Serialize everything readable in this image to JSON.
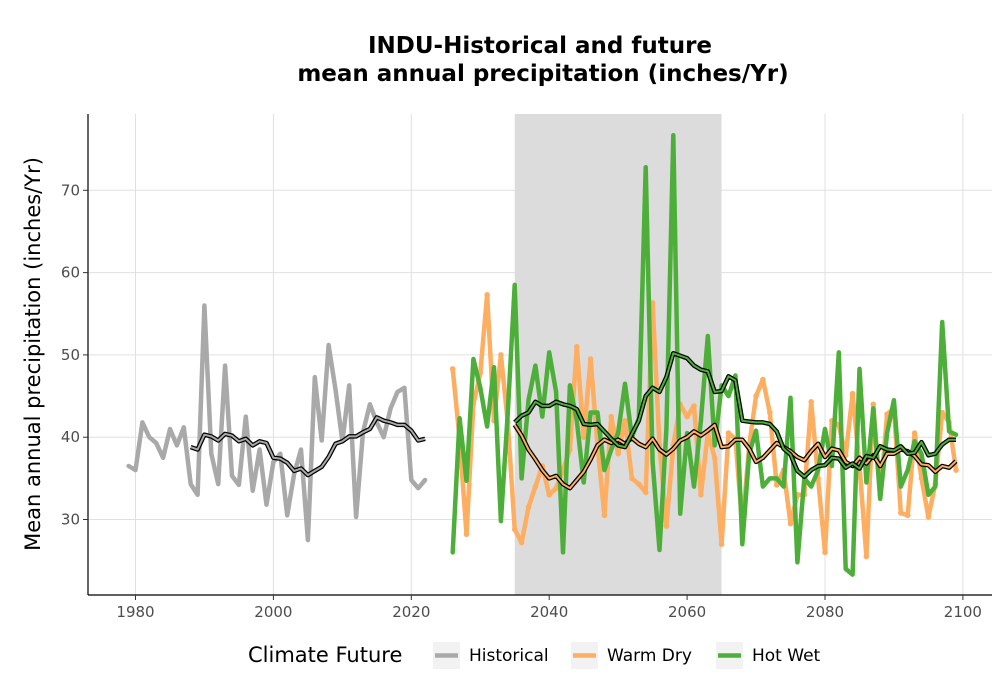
{
  "chart_data": {
    "type": "line",
    "title_line1": "INDU-Historical and future",
    "title_line2": "mean annual precipitation (inches/Yr)",
    "xlabel": "",
    "ylabel": "Mean annual precipitation (inches/Yr)",
    "xlim": [
      1973,
      2105
    ],
    "ylim": [
      21,
      80
    ],
    "x_ticks": [
      1980,
      2000,
      2020,
      2040,
      2060,
      2080,
      2100
    ],
    "y_ticks": [
      30,
      40,
      50,
      60,
      70
    ],
    "grid": true,
    "shaded_period": [
      2035,
      2065
    ],
    "shade_color": "#dcdcdc",
    "legend": {
      "title": "Climate Future",
      "position": "bottom",
      "entries": [
        {
          "label": "Historical",
          "color": "#a9a9a9"
        },
        {
          "label": "Warm Dry",
          "color": "#fdae61"
        },
        {
          "label": "Hot Wet",
          "color": "#4daf3a"
        }
      ]
    },
    "series": [
      {
        "name": "Historical",
        "color": "#a9a9a9",
        "x": [
          1979,
          1980,
          1981,
          1982,
          1983,
          1984,
          1985,
          1986,
          1987,
          1988,
          1989,
          1990,
          1991,
          1992,
          1993,
          1994,
          1995,
          1996,
          1997,
          1998,
          1999,
          2000,
          2001,
          2002,
          2003,
          2004,
          2005,
          2006,
          2007,
          2008,
          2009,
          2010,
          2011,
          2012,
          2013,
          2014,
          2015,
          2016,
          2017,
          2018,
          2019,
          2020,
          2021,
          2022
        ],
        "y": [
          36.5,
          36.0,
          41.8,
          40.0,
          39.3,
          37.5,
          41.0,
          39.0,
          41.2,
          34.3,
          33.0,
          56.0,
          38.0,
          34.3,
          48.7,
          35.3,
          34.2,
          42.5,
          33.5,
          38.5,
          31.8,
          37.0,
          38.0,
          30.5,
          35.5,
          38.5,
          27.5,
          47.3,
          39.6,
          51.2,
          45.8,
          39.5,
          46.3,
          30.3,
          40.6,
          44.0,
          41.8,
          40.0,
          43.5,
          45.5,
          46.0,
          34.8,
          33.8,
          34.8
        ]
      },
      {
        "name": "Warm Dry",
        "color": "#fdae61",
        "x": [
          2026,
          2027,
          2028,
          2029,
          2030,
          2031,
          2032,
          2033,
          2034,
          2035,
          2036,
          2037,
          2038,
          2039,
          2040,
          2041,
          2042,
          2043,
          2044,
          2045,
          2046,
          2047,
          2048,
          2049,
          2050,
          2051,
          2052,
          2053,
          2054,
          2055,
          2056,
          2057,
          2058,
          2059,
          2060,
          2061,
          2062,
          2063,
          2064,
          2065,
          2066,
          2067,
          2068,
          2069,
          2070,
          2071,
          2072,
          2073,
          2074,
          2075,
          2076,
          2077,
          2078,
          2079,
          2080,
          2081,
          2082,
          2083,
          2084,
          2085,
          2086,
          2087,
          2088,
          2089,
          2090,
          2091,
          2092,
          2093,
          2094,
          2095,
          2096,
          2097,
          2098,
          2099
        ],
        "y": [
          48.3,
          39.8,
          28.2,
          44.0,
          47.8,
          57.3,
          42.0,
          50.0,
          41.8,
          28.8,
          27.2,
          31.5,
          34.0,
          36.5,
          33.0,
          33.8,
          36.0,
          38.5,
          51.0,
          40.0,
          49.5,
          39.0,
          30.5,
          42.5,
          38.0,
          42.0,
          35.0,
          34.3,
          33.3,
          56.3,
          39.0,
          29.2,
          39.0,
          44.0,
          42.5,
          43.8,
          33.0,
          40.5,
          37.5,
          27.0,
          40.5,
          39.8,
          29.2,
          39.0,
          45.0,
          47.0,
          43.0,
          34.2,
          36.0,
          29.5,
          33.0,
          33.0,
          44.3,
          35.0,
          26.0,
          42.0,
          41.5,
          37.8,
          45.3,
          36.5,
          25.5,
          44.0,
          33.0,
          42.8,
          43.5,
          30.8,
          30.5,
          40.5,
          35.0,
          30.3,
          34.3,
          43.0,
          41.8,
          36.0
        ]
      },
      {
        "name": "Warm Dry rolling mean",
        "color": "#fdae61",
        "x": [
          2035,
          2036,
          2037,
          2038,
          2039,
          2040,
          2041,
          2042,
          2043,
          2044,
          2045,
          2046,
          2047,
          2048,
          2049,
          2050,
          2051,
          2052,
          2053,
          2054,
          2055,
          2056,
          2057,
          2058,
          2059,
          2060,
          2061,
          2062,
          2063,
          2064,
          2065,
          2066,
          2067,
          2068,
          2069,
          2070,
          2071,
          2072,
          2073,
          2074,
          2075,
          2076,
          2077,
          2078,
          2079,
          2080,
          2081,
          2082,
          2083,
          2084,
          2085,
          2086,
          2087,
          2088,
          2089,
          2090,
          2091,
          2092,
          2093,
          2094,
          2095,
          2096,
          2097,
          2098,
          2099
        ],
        "y": [
          41.5,
          40.2,
          38.5,
          37.3,
          36.0,
          35.0,
          35.3,
          34.3,
          33.8,
          34.8,
          35.8,
          37.3,
          39.0,
          39.7,
          39.3,
          39.7,
          39.2,
          39.9,
          39.2,
          38.8,
          39.8,
          38.5,
          37.9,
          38.6,
          39.6,
          40.0,
          40.7,
          40.2,
          40.8,
          41.5,
          38.8,
          38.9,
          39.7,
          39.7,
          38.6,
          37.0,
          37.5,
          38.4,
          39.3,
          38.8,
          38.3,
          37.6,
          37.2,
          38.3,
          39.2,
          37.6,
          38.6,
          38.4,
          37.0,
          36.5,
          37.5,
          36.8,
          37.8,
          36.5,
          38.0,
          38.0,
          38.5,
          38.3,
          37.7,
          36.7,
          36.6,
          35.8,
          36.5,
          36.3,
          37.1
        ]
      },
      {
        "name": "Hot Wet",
        "color": "#4daf3a",
        "x": [
          2026,
          2027,
          2028,
          2029,
          2030,
          2031,
          2032,
          2033,
          2034,
          2035,
          2036,
          2037,
          2038,
          2039,
          2040,
          2041,
          2042,
          2043,
          2044,
          2045,
          2046,
          2047,
          2048,
          2049,
          2050,
          2051,
          2052,
          2053,
          2054,
          2055,
          2056,
          2057,
          2058,
          2059,
          2060,
          2061,
          2062,
          2063,
          2064,
          2065,
          2066,
          2067,
          2068,
          2069,
          2070,
          2071,
          2072,
          2073,
          2074,
          2075,
          2076,
          2077,
          2078,
          2079,
          2080,
          2081,
          2082,
          2083,
          2084,
          2085,
          2086,
          2087,
          2088,
          2089,
          2090,
          2091,
          2092,
          2093,
          2094,
          2095,
          2096,
          2097,
          2098,
          2099
        ],
        "y": [
          26.0,
          42.3,
          34.7,
          49.5,
          46.0,
          41.3,
          48.5,
          29.8,
          43.0,
          58.5,
          35.0,
          44.5,
          48.7,
          42.5,
          50.3,
          45.5,
          26.0,
          46.3,
          42.0,
          34.5,
          43.0,
          43.0,
          36.0,
          38.5,
          40.5,
          46.5,
          40.0,
          42.3,
          72.8,
          37.0,
          26.3,
          41.0,
          76.7,
          30.7,
          40.5,
          34.0,
          42.0,
          52.3,
          39.0,
          46.3,
          45.0,
          47.5,
          27.0,
          38.0,
          40.8,
          34.0,
          35.0,
          35.0,
          34.0,
          44.8,
          24.8,
          35.0,
          34.0,
          36.0,
          41.0,
          36.5,
          50.3,
          24.0,
          23.3,
          48.3,
          34.5,
          43.5,
          32.5,
          40.5,
          44.5,
          34.0,
          36.0,
          39.5,
          38.0,
          33.0,
          34.0,
          54.0,
          40.7,
          40.3
        ]
      },
      {
        "name": "Hot Wet rolling mean",
        "color": "#4daf3a",
        "x": [
          2035,
          2036,
          2037,
          2038,
          2039,
          2040,
          2041,
          2042,
          2043,
          2044,
          2045,
          2046,
          2047,
          2048,
          2049,
          2050,
          2051,
          2052,
          2053,
          2054,
          2055,
          2056,
          2057,
          2058,
          2059,
          2060,
          2061,
          2062,
          2063,
          2064,
          2065,
          2066,
          2067,
          2068,
          2069,
          2070,
          2071,
          2072,
          2073,
          2074,
          2075,
          2076,
          2077,
          2078,
          2079,
          2080,
          2081,
          2082,
          2083,
          2084,
          2085,
          2086,
          2087,
          2088,
          2089,
          2090,
          2091,
          2092,
          2093,
          2094,
          2095,
          2096,
          2097,
          2098,
          2099
        ],
        "y": [
          41.8,
          42.6,
          43.0,
          44.3,
          43.8,
          43.8,
          44.3,
          44.0,
          43.8,
          43.4,
          41.6,
          41.5,
          41.6,
          40.7,
          39.8,
          39.0,
          38.8,
          40.4,
          42.0,
          45.0,
          46.0,
          45.5,
          47.3,
          50.2,
          49.9,
          49.6,
          48.7,
          48.2,
          48.0,
          45.5,
          45.6,
          47.4,
          46.9,
          42.0,
          41.9,
          41.8,
          41.8,
          41.6,
          40.7,
          38.6,
          37.9,
          35.9,
          35.2,
          36.0,
          36.5,
          36.6,
          37.5,
          37.4,
          36.3,
          36.8,
          36.2,
          37.7,
          37.5,
          38.9,
          38.5,
          38.4,
          38.9,
          38.0,
          38.1,
          39.4,
          37.8,
          38.0,
          39.1,
          39.7,
          39.7
        ]
      },
      {
        "name": "Historical rolling mean",
        "color": "#a9a9a9",
        "x": [
          1988,
          1989,
          1990,
          1991,
          1992,
          1993,
          1994,
          1995,
          1996,
          1997,
          1998,
          1999,
          2000,
          2001,
          2002,
          2003,
          2004,
          2005,
          2006,
          2007,
          2008,
          2009,
          2010,
          2011,
          2012,
          2013,
          2014,
          2015,
          2016,
          2017,
          2018,
          2019,
          2020,
          2021,
          2022
        ],
        "y": [
          38.8,
          38.5,
          40.3,
          40.1,
          39.6,
          40.4,
          40.2,
          39.5,
          39.8,
          39.0,
          39.5,
          39.3,
          37.5,
          37.4,
          36.9,
          35.9,
          36.2,
          35.4,
          35.9,
          36.4,
          37.6,
          39.2,
          39.5,
          40.1,
          40.1,
          40.6,
          41.0,
          42.4,
          42.0,
          41.8,
          41.5,
          41.5,
          40.8,
          39.6,
          39.8
        ]
      }
    ]
  }
}
